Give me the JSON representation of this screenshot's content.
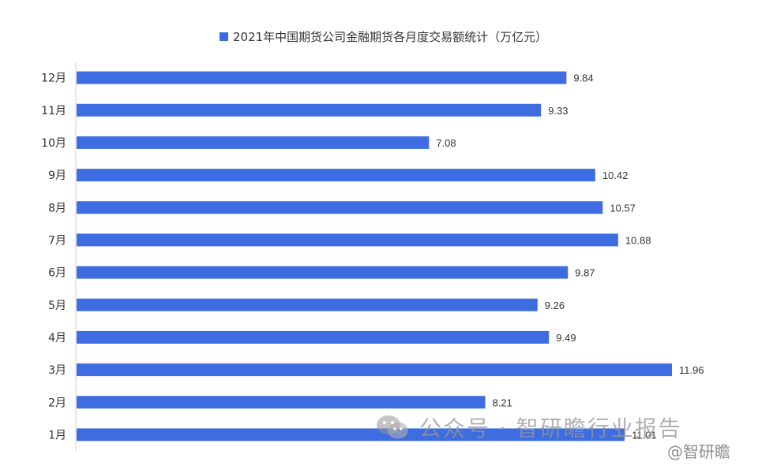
{
  "chart_data": {
    "type": "bar",
    "orientation": "horizontal",
    "title": "",
    "categories": [
      "12月",
      "11月",
      "10月",
      "9月",
      "8月",
      "7月",
      "6月",
      "5月",
      "4月",
      "3月",
      "2月",
      "1月"
    ],
    "series": [
      {
        "name": "2021年中国期货公司金融期货各月度交易额统计（万亿元）",
        "values": [
          9.84,
          9.33,
          7.08,
          10.42,
          10.57,
          10.88,
          9.87,
          9.26,
          9.49,
          11.96,
          8.21,
          11.01
        ],
        "labels": [
          "9.84",
          "9.33",
          "7.08",
          "10.42",
          "10.57",
          "10.88",
          "9.87",
          "9.26",
          "9.49",
          "11.96",
          "8.21",
          "11.01"
        ],
        "color": "#3d6de0"
      }
    ],
    "xlim": [
      0,
      14
    ],
    "grid": false,
    "legend_position": "top"
  },
  "watermark": {
    "text": "公众号 · 智研瞻行业报告",
    "icon": "wechat-icon",
    "handle": "@智研瞻"
  },
  "colors": {
    "bar": "#3d6de0",
    "axis": "#d0d0d0",
    "text": "#333333"
  }
}
